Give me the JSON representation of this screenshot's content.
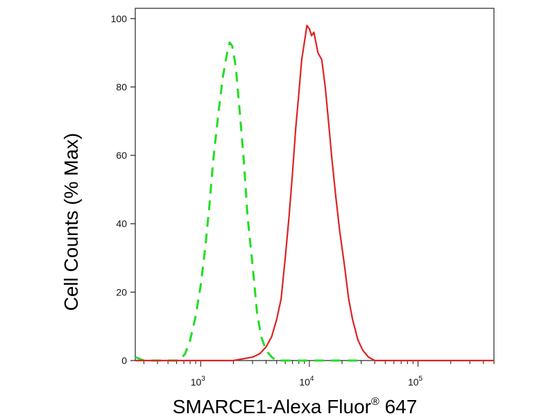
{
  "chart_data": {
    "type": "line",
    "xscale": "log",
    "xlim": [
      250,
      500000
    ],
    "ylim": [
      0,
      103
    ],
    "ylabel": "Cell Counts (% Max)",
    "xlabel": {
      "text": "SMARCE1-Alexa Fluor",
      "superscript": "®",
      "suffix": " 647"
    },
    "y_ticks": [
      0,
      20,
      40,
      60,
      80,
      100
    ],
    "x_major_ticks": [
      {
        "value": 1000,
        "base": "10",
        "exp": "3"
      },
      {
        "value": 10000,
        "base": "10",
        "exp": "4"
      },
      {
        "value": 100000,
        "base": "10",
        "exp": "5"
      }
    ],
    "series": [
      {
        "color": "#22dd22",
        "dash": "dashed",
        "points": [
          [
            250,
            1
          ],
          [
            300,
            0
          ],
          [
            500,
            0
          ],
          [
            640,
            0
          ],
          [
            720,
            2
          ],
          [
            800,
            6
          ],
          [
            900,
            13
          ],
          [
            1000,
            22
          ],
          [
            1100,
            33
          ],
          [
            1200,
            45
          ],
          [
            1300,
            58
          ],
          [
            1450,
            72
          ],
          [
            1600,
            83
          ],
          [
            1750,
            90
          ],
          [
            1850,
            93
          ],
          [
            1950,
            92
          ],
          [
            2100,
            86
          ],
          [
            2300,
            72
          ],
          [
            2500,
            58
          ],
          [
            2700,
            42
          ],
          [
            3000,
            28
          ],
          [
            3300,
            14
          ],
          [
            3600,
            7
          ],
          [
            4000,
            3
          ],
          [
            4500,
            1
          ],
          [
            5000,
            0
          ],
          [
            6000,
            0
          ],
          [
            9000,
            0
          ],
          [
            12000,
            0
          ],
          [
            20000,
            0
          ],
          [
            28000,
            0
          ]
        ]
      },
      {
        "color": "#dd2222",
        "dash": "solid",
        "points": [
          [
            250,
            0
          ],
          [
            1000,
            0
          ],
          [
            2000,
            0
          ],
          [
            3000,
            1
          ],
          [
            3500,
            2
          ],
          [
            4000,
            4
          ],
          [
            4500,
            7
          ],
          [
            5000,
            12
          ],
          [
            5500,
            18
          ],
          [
            6000,
            30
          ],
          [
            6500,
            42
          ],
          [
            7000,
            55
          ],
          [
            7500,
            68
          ],
          [
            8000,
            78
          ],
          [
            8500,
            88
          ],
          [
            9000,
            93
          ],
          [
            9500,
            98
          ],
          [
            10000,
            97
          ],
          [
            10500,
            95
          ],
          [
            11000,
            96
          ],
          [
            11500,
            93
          ],
          [
            12000,
            90
          ],
          [
            13000,
            88
          ],
          [
            14000,
            80
          ],
          [
            15000,
            70
          ],
          [
            16000,
            60
          ],
          [
            17500,
            48
          ],
          [
            19000,
            38
          ],
          [
            21000,
            28
          ],
          [
            23000,
            18
          ],
          [
            25000,
            12
          ],
          [
            28000,
            6
          ],
          [
            31000,
            3
          ],
          [
            35000,
            1
          ],
          [
            40000,
            0
          ],
          [
            100000,
            0
          ],
          [
            500000,
            0
          ]
        ]
      }
    ]
  }
}
